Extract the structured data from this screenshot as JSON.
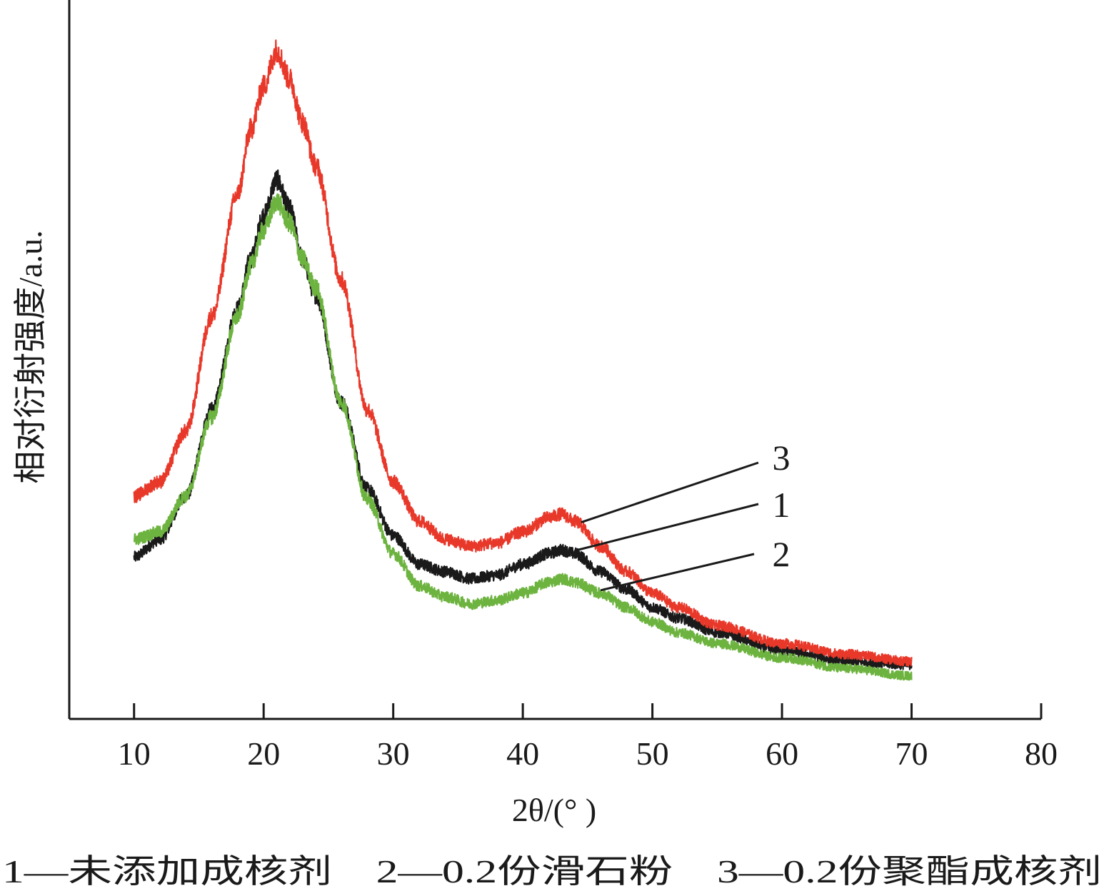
{
  "chart_data": {
    "type": "line",
    "title": "",
    "xlabel": "2θ/(° )",
    "ylabel": "相对衍射强度/a.u.",
    "xlim": [
      5,
      80
    ],
    "ylim": [
      0,
      100
    ],
    "y_units": "a.u. (arbitrary, no tick values shown)",
    "x_ticks": [
      10,
      20,
      30,
      40,
      50,
      60,
      70,
      80
    ],
    "grid": false,
    "legend_position": "bottom (below x-axis title)",
    "legend_text": "1—未添加成核剂　2—0.2份滑石粉　3—0.2份聚酯成核剂",
    "series": [
      {
        "name": "1—未添加成核剂",
        "curve_label": "1",
        "color": "#1a1a1a",
        "x": [
          10,
          12,
          14,
          16,
          18,
          19,
          20,
          21,
          22,
          23,
          24,
          26,
          28,
          30,
          32,
          34,
          36,
          38,
          40,
          42,
          43,
          44,
          46,
          48,
          50,
          52,
          55,
          60,
          65,
          70
        ],
        "values": [
          22.5,
          25,
          31,
          43,
          57,
          64,
          70,
          75,
          71,
          64,
          59,
          44,
          32,
          25.5,
          21.5,
          20.5,
          19.5,
          20,
          21.5,
          23,
          23.5,
          23,
          20.5,
          18,
          15.5,
          14,
          12,
          9.5,
          8,
          7.5
        ]
      },
      {
        "name": "2—0.2份滑石粉",
        "curve_label": "2",
        "color": "#6db33f",
        "x": [
          10,
          12,
          14,
          16,
          18,
          19,
          20,
          21,
          22,
          23,
          24,
          26,
          28,
          30,
          32,
          34,
          36,
          38,
          40,
          42,
          43,
          44,
          46,
          48,
          50,
          52,
          55,
          60,
          65,
          70
        ],
        "values": [
          25,
          26,
          31,
          42,
          56,
          63,
          68,
          72,
          69,
          64,
          60,
          44,
          30.5,
          23,
          18.5,
          17,
          16,
          16.5,
          17.5,
          19,
          19.5,
          19,
          17.5,
          15.5,
          13.5,
          12,
          10.5,
          8.5,
          7,
          6
        ]
      },
      {
        "name": "3—0.2份聚酯成核剂",
        "curve_label": "3",
        "color": "#e8382a",
        "x": [
          10,
          12,
          14,
          16,
          18,
          19,
          20,
          21,
          22,
          23,
          24,
          26,
          28,
          30,
          32,
          34,
          36,
          38,
          40,
          42,
          43,
          44,
          46,
          48,
          50,
          52,
          55,
          60,
          65,
          70
        ],
        "values": [
          31,
          33,
          40,
          56,
          73,
          82,
          88,
          93,
          89,
          83,
          77,
          61,
          43,
          33,
          27.5,
          25,
          24,
          24.5,
          26,
          28,
          28.5,
          27.5,
          24,
          20.5,
          17.5,
          15.5,
          13,
          10.5,
          9,
          8
        ]
      }
    ]
  }
}
